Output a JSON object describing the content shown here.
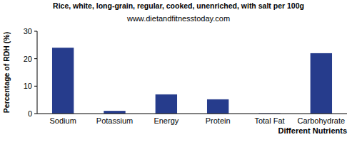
{
  "chart_data": {
    "type": "bar",
    "title": "Rice, white, long-grain, regular, cooked, unenriched, with salt per 100g",
    "subtitle": "www.dietandfitnesstoday.com",
    "x_label": "Different Nutrients",
    "y_label": "Percentage of RDH (%)",
    "categories": [
      "Sodium",
      "Potassium",
      "Energy",
      "Protein",
      "Total Fat",
      "Carbohydrate"
    ],
    "values": [
      24,
      1,
      7,
      5.2,
      0.1,
      22
    ],
    "color": "#263c8c",
    "ylim": [
      0,
      30
    ],
    "yticks": [
      0,
      10,
      20,
      30
    ],
    "grid": false
  }
}
